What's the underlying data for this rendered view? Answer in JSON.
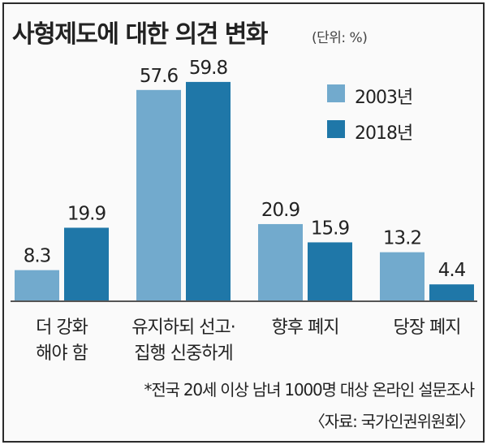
{
  "header": {
    "title": "사형제도에 대한 의견 변화",
    "unit": "(단위: %)"
  },
  "legend": [
    {
      "label": "2003년",
      "color": "#72aacd"
    },
    {
      "label": "2018년",
      "color": "#1f77a8"
    }
  ],
  "chart_data": {
    "type": "bar",
    "categories": [
      [
        "더 강화",
        "해야 함"
      ],
      [
        "유지하되 선고·",
        "집행 신중하게"
      ],
      [
        "향후 폐지"
      ],
      [
        "당장 폐지"
      ]
    ],
    "series": [
      {
        "name": "2003년",
        "values": [
          8.3,
          57.6,
          20.9,
          13.2
        ],
        "labels": [
          "8.3",
          "57.6",
          "20.9",
          "13.2"
        ]
      },
      {
        "name": "2018년",
        "values": [
          19.9,
          59.8,
          15.9,
          4.4
        ],
        "labels": [
          "19.9",
          "59.8",
          "15.9",
          "4.4"
        ]
      }
    ],
    "title": "사형제도에 대한 의견 변화",
    "ylim": [
      0,
      60
    ],
    "grid": false,
    "legend_position": "top-right"
  },
  "footnote": "*전국 20세 이상 남녀 1000명 대상 온라인 설문조사",
  "source": "〈자료: 국가인권위원회〉"
}
